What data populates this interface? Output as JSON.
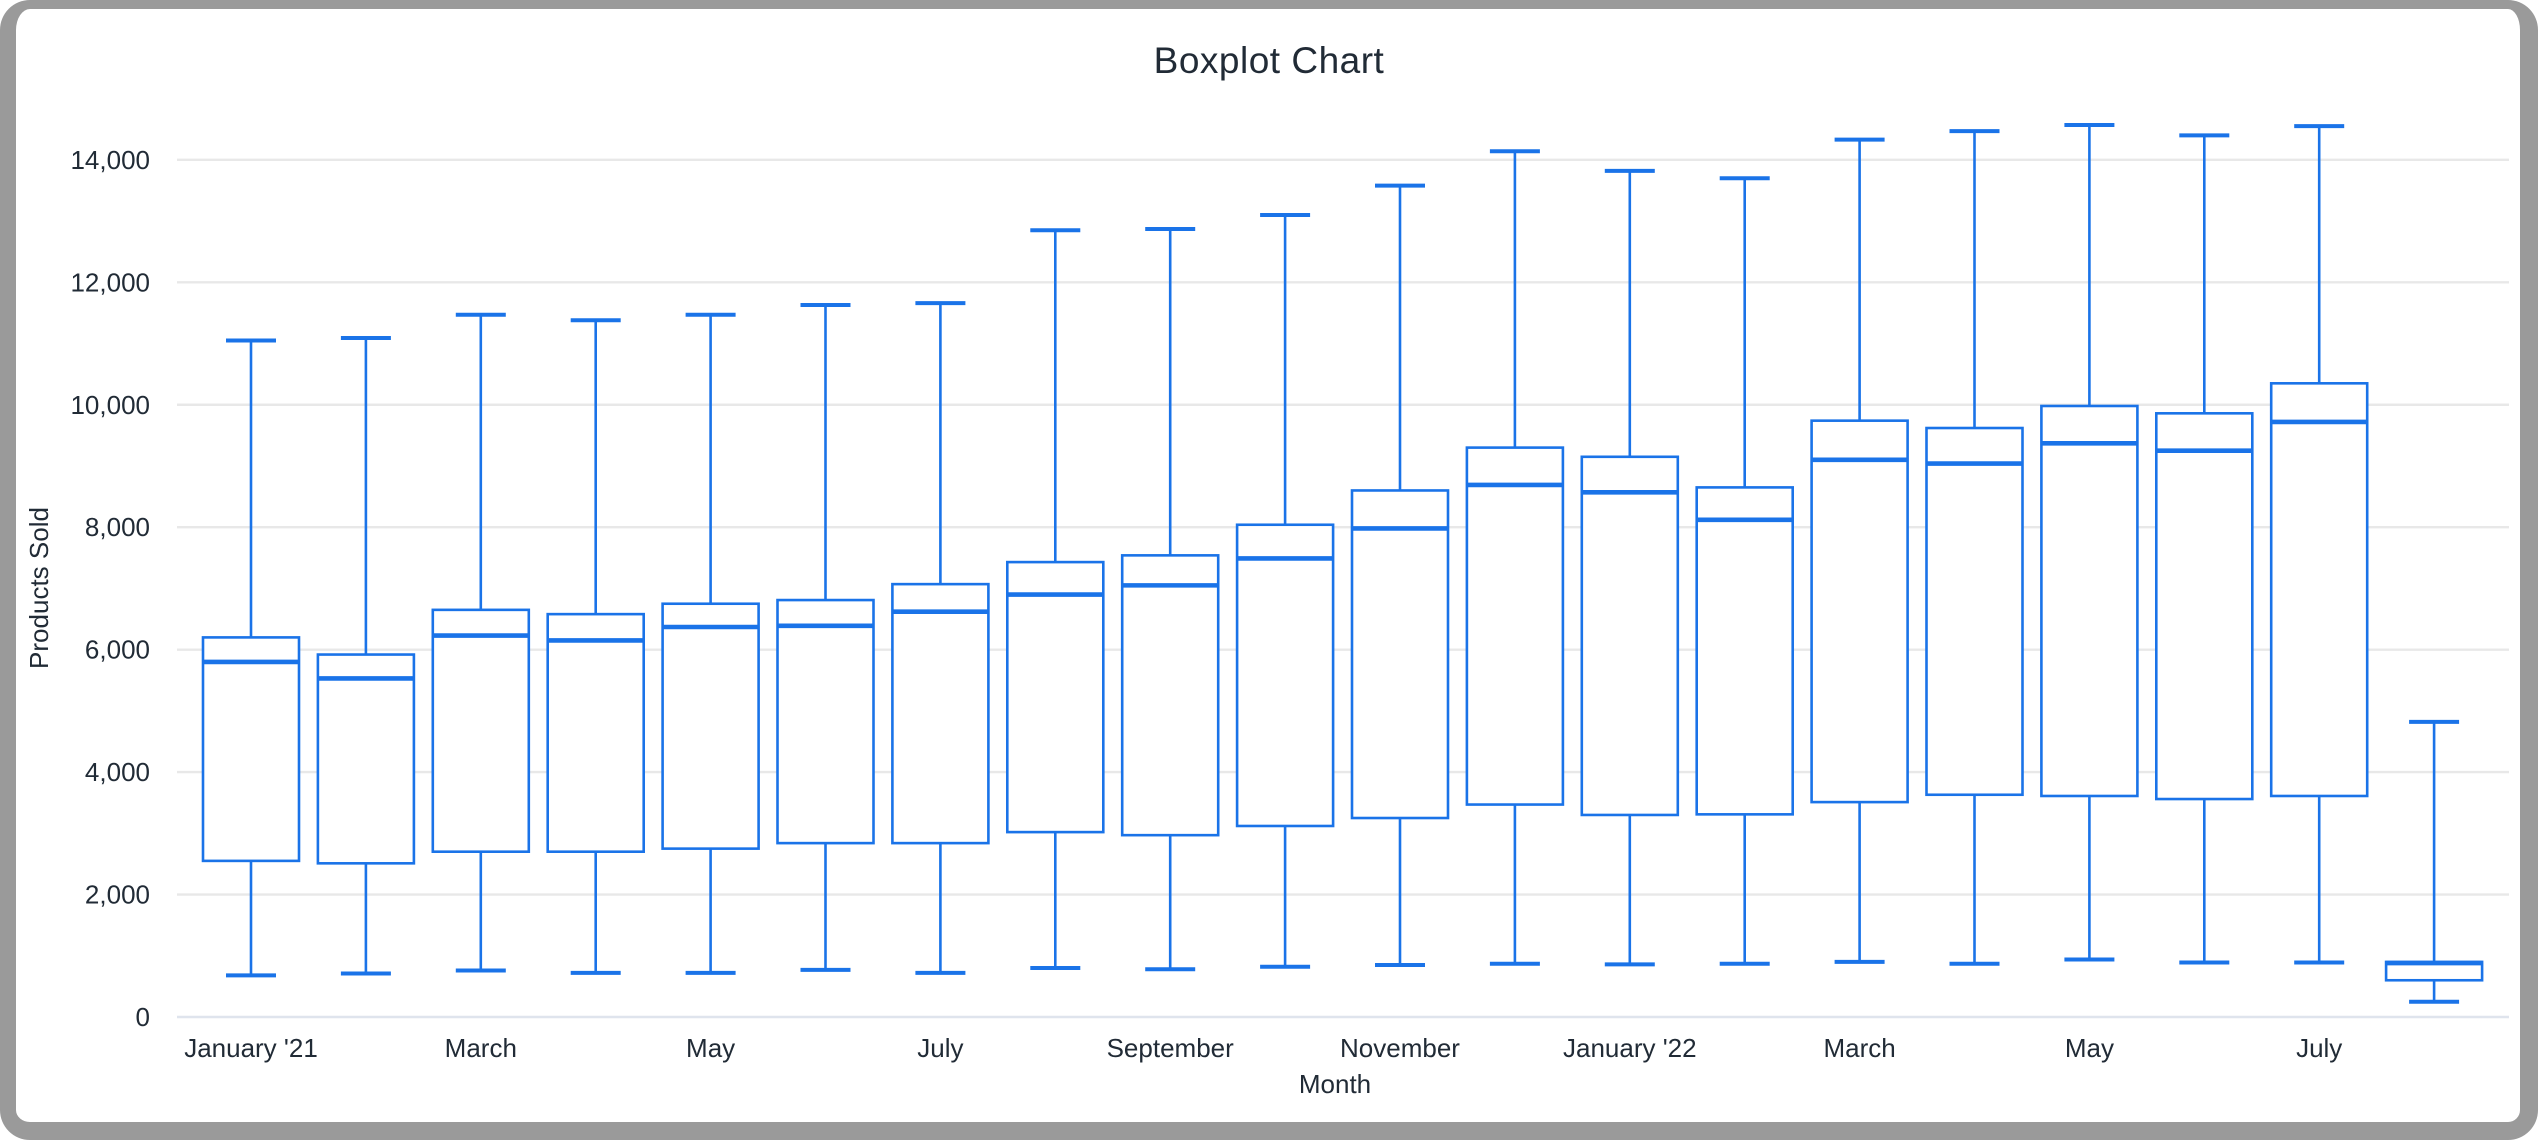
{
  "window": {
    "frame_color": "#9a9a9a",
    "background_color": "#ffffff"
  },
  "chart_data": {
    "type": "boxplot",
    "title": "Boxplot Chart",
    "xlabel": "Month",
    "ylabel": "Products Sold",
    "ylim": [
      0,
      14000
    ],
    "grid": true,
    "legend_position": "none",
    "series_color": "#1a73e8",
    "box_fill_color": "#ffffff",
    "gridline_color": "#e8e8e8",
    "zero_line_color": "#dfe4ed",
    "text_color": "#212b36",
    "y_ticks": [
      {
        "value": 0,
        "label": "0"
      },
      {
        "value": 2000,
        "label": "2,000"
      },
      {
        "value": 4000,
        "label": "4,000"
      },
      {
        "value": 6000,
        "label": "6,000"
      },
      {
        "value": 8000,
        "label": "8,000"
      },
      {
        "value": 10000,
        "label": "10,000"
      },
      {
        "value": 12000,
        "label": "12,000"
      },
      {
        "value": 14000,
        "label": "14,000"
      }
    ],
    "x_tick_labels": [
      "January '21",
      "March",
      "May",
      "July",
      "September",
      "November",
      "January '22",
      "March",
      "May",
      "July"
    ],
    "boxes": [
      {
        "axis_label": "January '21",
        "min": 680,
        "q1": 2550,
        "median": 5800,
        "q3": 6200,
        "max": 11050
      },
      {
        "axis_label": "",
        "min": 710,
        "q1": 2510,
        "median": 5530,
        "q3": 5920,
        "max": 11090
      },
      {
        "axis_label": "March",
        "min": 760,
        "q1": 2700,
        "median": 6230,
        "q3": 6650,
        "max": 11470
      },
      {
        "axis_label": "",
        "min": 720,
        "q1": 2700,
        "median": 6150,
        "q3": 6580,
        "max": 11380
      },
      {
        "axis_label": "May",
        "min": 720,
        "q1": 2750,
        "median": 6370,
        "q3": 6750,
        "max": 11470
      },
      {
        "axis_label": "",
        "min": 770,
        "q1": 2840,
        "median": 6390,
        "q3": 6810,
        "max": 11630
      },
      {
        "axis_label": "July",
        "min": 720,
        "q1": 2840,
        "median": 6620,
        "q3": 7070,
        "max": 11660
      },
      {
        "axis_label": "",
        "min": 800,
        "q1": 3020,
        "median": 6900,
        "q3": 7430,
        "max": 12850
      },
      {
        "axis_label": "September",
        "min": 780,
        "q1": 2970,
        "median": 7050,
        "q3": 7540,
        "max": 12870
      },
      {
        "axis_label": "",
        "min": 820,
        "q1": 3120,
        "median": 7490,
        "q3": 8040,
        "max": 13100
      },
      {
        "axis_label": "November",
        "min": 850,
        "q1": 3250,
        "median": 7980,
        "q3": 8600,
        "max": 13580
      },
      {
        "axis_label": "",
        "min": 870,
        "q1": 3470,
        "median": 8690,
        "q3": 9300,
        "max": 14140
      },
      {
        "axis_label": "January '22",
        "min": 860,
        "q1": 3300,
        "median": 8570,
        "q3": 9150,
        "max": 13820
      },
      {
        "axis_label": "",
        "min": 870,
        "q1": 3310,
        "median": 8120,
        "q3": 8650,
        "max": 13700
      },
      {
        "axis_label": "March",
        "min": 900,
        "q1": 3510,
        "median": 9100,
        "q3": 9740,
        "max": 14330
      },
      {
        "axis_label": "",
        "min": 870,
        "q1": 3630,
        "median": 9040,
        "q3": 9620,
        "max": 14470
      },
      {
        "axis_label": "May",
        "min": 940,
        "q1": 3610,
        "median": 9370,
        "q3": 9980,
        "max": 14570
      },
      {
        "axis_label": "",
        "min": 890,
        "q1": 3560,
        "median": 9250,
        "q3": 9860,
        "max": 14400
      },
      {
        "axis_label": "July",
        "min": 890,
        "q1": 3610,
        "median": 9720,
        "q3": 10350,
        "max": 14550
      },
      {
        "axis_label": "",
        "min": 250,
        "q1": 600,
        "median": 880,
        "q3": 900,
        "max": 4820
      }
    ]
  }
}
